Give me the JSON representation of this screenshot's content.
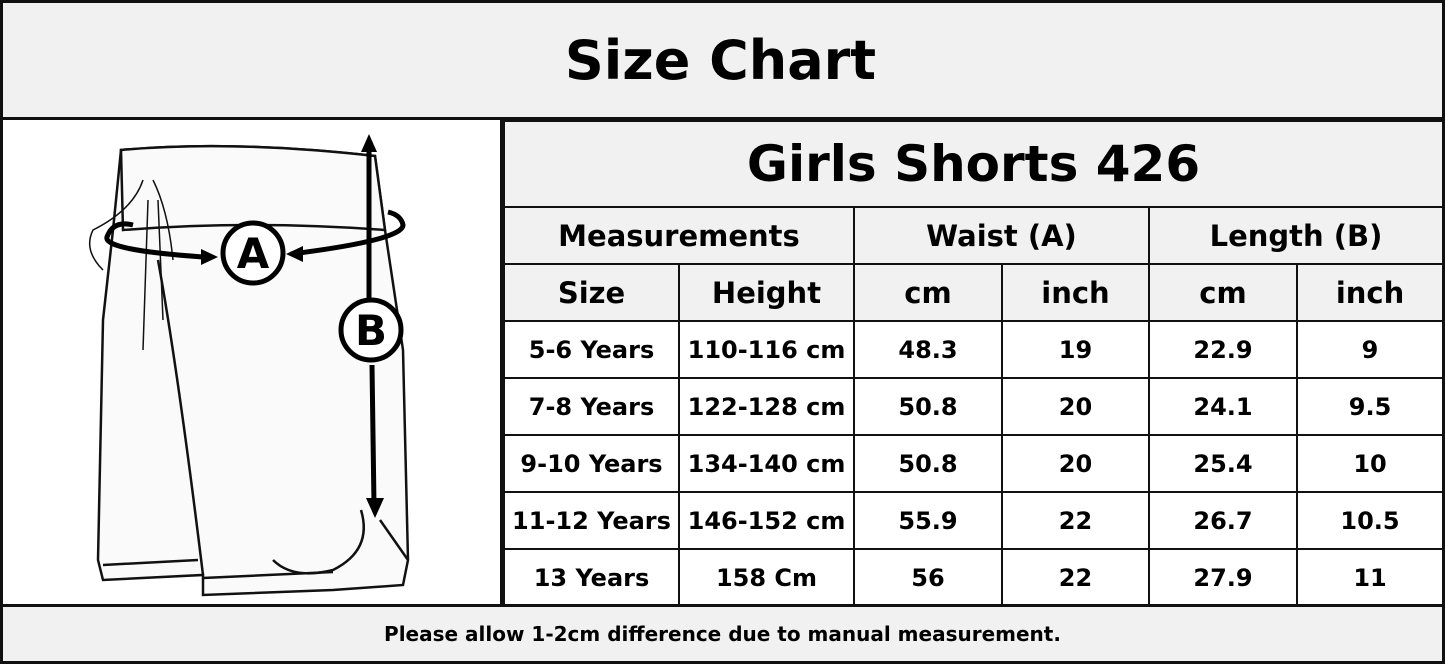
{
  "title": "Size Chart",
  "product": "Girls Shorts 426",
  "labels": {
    "a": "A",
    "b": "B"
  },
  "header": {
    "measurements": "Measurements",
    "waist": "Waist (A)",
    "length": "Length (B)",
    "size": "Size",
    "height": "Height",
    "waist_cm": "cm",
    "waist_inch": "inch",
    "length_cm": "cm",
    "length_inch": "inch"
  },
  "rows": [
    {
      "size": "5-6 Years",
      "height": "110-116 cm",
      "waist_cm": "48.3",
      "waist_inch": "19",
      "length_cm": "22.9",
      "length_inch": "9"
    },
    {
      "size": "7-8 Years",
      "height": "122-128 cm",
      "waist_cm": "50.8",
      "waist_inch": "20",
      "length_cm": "24.1",
      "length_inch": "9.5"
    },
    {
      "size": "9-10 Years",
      "height": "134-140 cm",
      "waist_cm": "50.8",
      "waist_inch": "20",
      "length_cm": "25.4",
      "length_inch": "10"
    },
    {
      "size": "11-12 Years",
      "height": "146-152 cm",
      "waist_cm": "55.9",
      "waist_inch": "22",
      "length_cm": "26.7",
      "length_inch": "10.5"
    },
    {
      "size": "13 Years",
      "height": "158 Cm",
      "waist_cm": "56",
      "waist_inch": "22",
      "length_cm": "27.9",
      "length_inch": "11"
    }
  ],
  "footer": "Please allow 1-2cm difference due to manual measurement."
}
